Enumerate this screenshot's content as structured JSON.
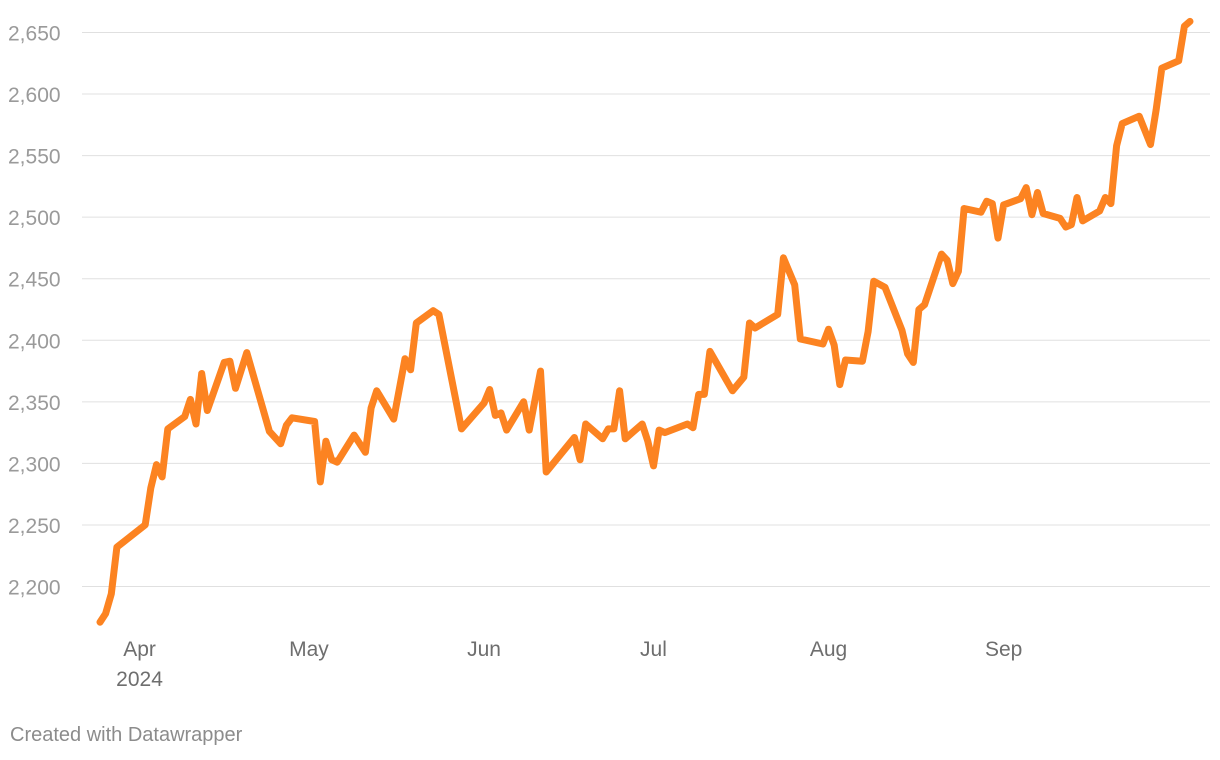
{
  "chart_data": {
    "type": "line",
    "title": "",
    "xlabel": "",
    "ylabel": "",
    "ylim": [
      2160,
      2660
    ],
    "yticks": [
      2200,
      2250,
      2300,
      2350,
      2400,
      2450,
      2500,
      2550,
      2600,
      2650
    ],
    "ytick_labels": [
      "2,200",
      "2,250",
      "2,300",
      "2,350",
      "2,400",
      "2,450",
      "2,500",
      "2,550",
      "2,600",
      "2,650"
    ],
    "xtick_labels": [
      {
        "label": "Apr",
        "sublabel": "2024",
        "date": "2024-04-01"
      },
      {
        "label": "May",
        "sublabel": "",
        "date": "2024-05-01"
      },
      {
        "label": "Jun",
        "sublabel": "",
        "date": "2024-06-01"
      },
      {
        "label": "Jul",
        "sublabel": "",
        "date": "2024-07-01"
      },
      {
        "label": "Aug",
        "sublabel": "",
        "date": "2024-08-01"
      },
      {
        "label": "Sep",
        "sublabel": "",
        "date": "2024-09-01"
      }
    ],
    "grid": true,
    "line_color": "#fc8321",
    "series": [
      {
        "points": [
          [
            "2024-03-25",
            2171
          ],
          [
            "2024-03-26",
            2178
          ],
          [
            "2024-03-27",
            2194
          ],
          [
            "2024-03-28",
            2232
          ],
          [
            "2024-04-02",
            2250
          ],
          [
            "2024-04-03",
            2280
          ],
          [
            "2024-04-04",
            2299
          ],
          [
            "2024-04-05",
            2289
          ],
          [
            "2024-04-06",
            2328
          ],
          [
            "2024-04-09",
            2338
          ],
          [
            "2024-04-10",
            2352
          ],
          [
            "2024-04-11",
            2332
          ],
          [
            "2024-04-12",
            2373
          ],
          [
            "2024-04-13",
            2343
          ],
          [
            "2024-04-16",
            2382
          ],
          [
            "2024-04-17",
            2383
          ],
          [
            "2024-04-18",
            2361
          ],
          [
            "2024-04-20",
            2390
          ],
          [
            "2024-04-24",
            2326
          ],
          [
            "2024-04-26",
            2316
          ],
          [
            "2024-04-27",
            2331
          ],
          [
            "2024-04-28",
            2337
          ],
          [
            "2024-05-02",
            2334
          ],
          [
            "2024-05-03",
            2285
          ],
          [
            "2024-05-04",
            2318
          ],
          [
            "2024-05-05",
            2303
          ],
          [
            "2024-05-06",
            2301
          ],
          [
            "2024-05-09",
            2323
          ],
          [
            "2024-05-11",
            2309
          ],
          [
            "2024-05-12",
            2345
          ],
          [
            "2024-05-13",
            2359
          ],
          [
            "2024-05-16",
            2336
          ],
          [
            "2024-05-18",
            2385
          ],
          [
            "2024-05-19",
            2376
          ],
          [
            "2024-05-20",
            2414
          ],
          [
            "2024-05-23",
            2424
          ],
          [
            "2024-05-24",
            2421
          ],
          [
            "2024-05-28",
            2328
          ],
          [
            "2024-06-01",
            2349
          ],
          [
            "2024-06-02",
            2360
          ],
          [
            "2024-06-03",
            2339
          ],
          [
            "2024-06-04",
            2341
          ],
          [
            "2024-06-05",
            2327
          ],
          [
            "2024-06-08",
            2350
          ],
          [
            "2024-06-09",
            2327
          ],
          [
            "2024-06-11",
            2375
          ],
          [
            "2024-06-12",
            2293
          ],
          [
            "2024-06-17",
            2321
          ],
          [
            "2024-06-18",
            2303
          ],
          [
            "2024-06-19",
            2332
          ],
          [
            "2024-06-22",
            2320
          ],
          [
            "2024-06-23",
            2328
          ],
          [
            "2024-06-24",
            2328
          ],
          [
            "2024-06-25",
            2359
          ],
          [
            "2024-06-26",
            2320
          ],
          [
            "2024-06-29",
            2332
          ],
          [
            "2024-06-30",
            2318
          ],
          [
            "2024-07-01",
            2298
          ],
          [
            "2024-07-02",
            2327
          ],
          [
            "2024-07-03",
            2325
          ],
          [
            "2024-07-07",
            2332
          ],
          [
            "2024-07-08",
            2329
          ],
          [
            "2024-07-09",
            2356
          ],
          [
            "2024-07-10",
            2356
          ],
          [
            "2024-07-11",
            2391
          ],
          [
            "2024-07-15",
            2359
          ],
          [
            "2024-07-17",
            2370
          ],
          [
            "2024-07-18",
            2414
          ],
          [
            "2024-07-19",
            2410
          ],
          [
            "2024-07-23",
            2421
          ],
          [
            "2024-07-24",
            2467
          ],
          [
            "2024-07-26",
            2445
          ],
          [
            "2024-07-27",
            2401
          ],
          [
            "2024-07-31",
            2397
          ],
          [
            "2024-08-01",
            2409
          ],
          [
            "2024-08-02",
            2396
          ],
          [
            "2024-08-03",
            2364
          ],
          [
            "2024-08-04",
            2384
          ],
          [
            "2024-08-07",
            2383
          ],
          [
            "2024-08-08",
            2407
          ],
          [
            "2024-08-09",
            2448
          ],
          [
            "2024-08-11",
            2443
          ],
          [
            "2024-08-14",
            2408
          ],
          [
            "2024-08-15",
            2389
          ],
          [
            "2024-08-16",
            2382
          ],
          [
            "2024-08-17",
            2425
          ],
          [
            "2024-08-18",
            2429
          ],
          [
            "2024-08-21",
            2470
          ],
          [
            "2024-08-22",
            2465
          ],
          [
            "2024-08-23",
            2446
          ],
          [
            "2024-08-24",
            2456
          ],
          [
            "2024-08-25",
            2507
          ],
          [
            "2024-08-28",
            2504
          ],
          [
            "2024-08-29",
            2513
          ],
          [
            "2024-08-30",
            2511
          ],
          [
            "2024-08-31",
            2483
          ],
          [
            "2024-09-01",
            2510
          ],
          [
            "2024-09-04",
            2515
          ],
          [
            "2024-09-05",
            2524
          ],
          [
            "2024-09-06",
            2502
          ],
          [
            "2024-09-07",
            2520
          ],
          [
            "2024-09-08",
            2503
          ],
          [
            "2024-09-11",
            2499
          ],
          [
            "2024-09-12",
            2492
          ],
          [
            "2024-09-13",
            2494
          ],
          [
            "2024-09-14",
            2516
          ],
          [
            "2024-09-15",
            2497
          ],
          [
            "2024-09-18",
            2505
          ],
          [
            "2024-09-19",
            2516
          ],
          [
            "2024-09-20",
            2511
          ],
          [
            "2024-09-21",
            2558
          ],
          [
            "2024-09-22",
            2576
          ],
          [
            "2024-09-25",
            2582
          ],
          [
            "2024-09-27",
            2559
          ],
          [
            "2024-09-28",
            2587
          ],
          [
            "2024-09-29",
            2621
          ],
          [
            "2024-10-02",
            2627
          ],
          [
            "2024-10-03",
            2655
          ],
          [
            "2024-10-04",
            2659
          ]
        ]
      }
    ]
  },
  "footer": {
    "credit": "Created with Datawrapper"
  }
}
